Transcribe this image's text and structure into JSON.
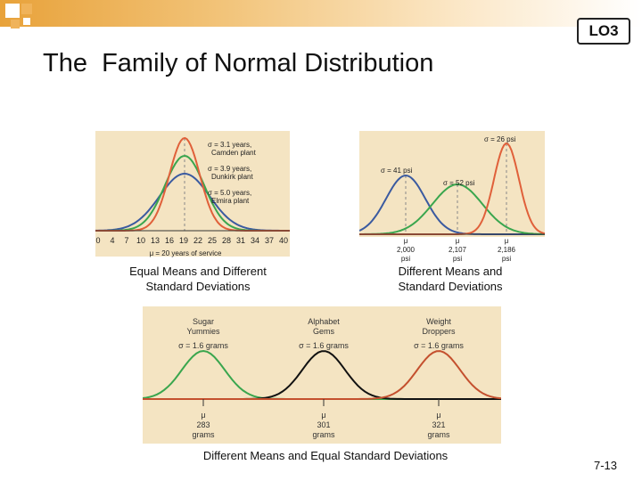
{
  "slide": {
    "badge": "LO3",
    "title": "The  Family of Normal Distribution",
    "page_number": "7-13"
  },
  "colors": {
    "banner": "#e8a23a",
    "panel_background": "#f4e4c2",
    "blue_curve": "#3a5aa0",
    "green_curve": "#3aa64e",
    "red_curve": "#e0603a",
    "black_curve": "#111111"
  },
  "charts": {
    "equal_means": {
      "caption": "Equal Means and Different Standard Deviations",
      "x_ticks": [
        "0",
        "4",
        "7",
        "10",
        "13",
        "16",
        "19",
        "22",
        "25",
        "28",
        "31",
        "34",
        "37",
        "40"
      ],
      "axis_label": "μ = 20 years of service",
      "annotations": [
        {
          "line1": "σ = 3.1 years,",
          "line2": "Camden plant"
        },
        {
          "line1": "σ = 3.9 years,",
          "line2": "Dunkirk plant"
        },
        {
          "line1": "σ = 5.0 years,",
          "line2": "Elmira plant"
        }
      ]
    },
    "different_means": {
      "caption": "Different Means  and Standard Deviations",
      "sigma_labels": [
        "σ = 41 psi",
        "σ = 52 psi",
        "σ = 26 psi"
      ],
      "mean_labels": [
        {
          "mu": "μ",
          "value": "2,000",
          "unit": "psi"
        },
        {
          "mu": "μ",
          "value": "2,107",
          "unit": "psi"
        },
        {
          "mu": "μ",
          "value": "2,186",
          "unit": "psi"
        }
      ]
    },
    "equal_sd": {
      "caption": "Different Means and Equal Standard Deviations",
      "products": [
        {
          "name_line1": "Sugar",
          "name_line2": "Yummies",
          "sigma": "σ = 1.6 grams",
          "mu": "μ",
          "mean": "283",
          "unit": "grams"
        },
        {
          "name_line1": "Alphabet",
          "name_line2": "Gems",
          "sigma": "σ = 1.6 grams",
          "mu": "μ",
          "mean": "301",
          "unit": "grams"
        },
        {
          "name_line1": "Weight",
          "name_line2": "Droppers",
          "sigma": "σ = 1.6 grams",
          "mu": "μ",
          "mean": "321",
          "unit": "grams"
        }
      ]
    }
  }
}
